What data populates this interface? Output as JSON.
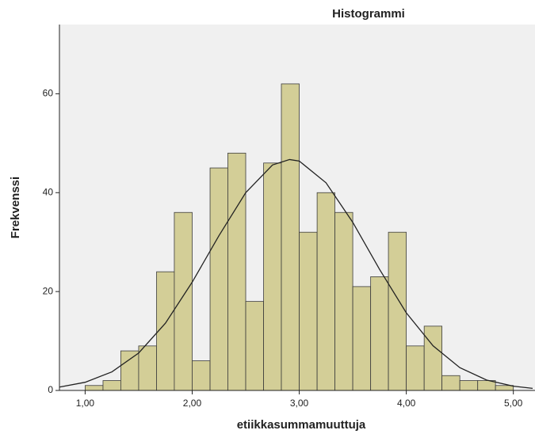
{
  "chart_data": {
    "type": "histogram",
    "title": "Histogrammi",
    "x_label": "etiikkasummamuuttuja",
    "y_label": "Frekvenssi",
    "bins": [
      1.0,
      1.167,
      1.333,
      1.5,
      1.667,
      1.833,
      2.0,
      2.167,
      2.333,
      2.5,
      2.667,
      2.833,
      3.0,
      3.167,
      3.333,
      3.5,
      3.667,
      3.833,
      4.0,
      4.167,
      4.333,
      4.5,
      4.667,
      4.833,
      5.0
    ],
    "values": [
      1,
      2,
      8,
      9,
      24,
      36,
      6,
      45,
      48,
      18,
      46,
      62,
      32,
      40,
      36,
      21,
      23,
      32,
      9,
      13,
      3,
      2,
      2,
      1
    ],
    "color": "#d3ce97",
    "curve": {
      "x": [
        0.76,
        1.0,
        1.25,
        1.5,
        1.75,
        2.0,
        2.25,
        2.5,
        2.75,
        2.91,
        3.0,
        3.25,
        3.5,
        3.75,
        4.0,
        4.25,
        4.5,
        4.75,
        5.0,
        5.18
      ],
      "y": [
        0.68,
        1.65,
        3.75,
        7.57,
        13.6,
        21.9,
        31.3,
        40.0,
        45.6,
        46.7,
        46.4,
        42.0,
        34.0,
        24.5,
        15.7,
        9.02,
        4.61,
        2.1,
        0.86,
        0.42
      ],
      "color": "#222222"
    },
    "xlim": [
      0.76,
      5.18
    ],
    "ylim": [
      0,
      74
    ],
    "xticks": [
      {
        "value": 1,
        "label": "1,00"
      },
      {
        "value": 2,
        "label": "2,00"
      },
      {
        "value": 3,
        "label": "3,00"
      },
      {
        "value": 4,
        "label": "4,00"
      },
      {
        "value": 5,
        "label": "5,00"
      }
    ],
    "yticks": [
      0,
      20,
      40,
      60
    ]
  }
}
